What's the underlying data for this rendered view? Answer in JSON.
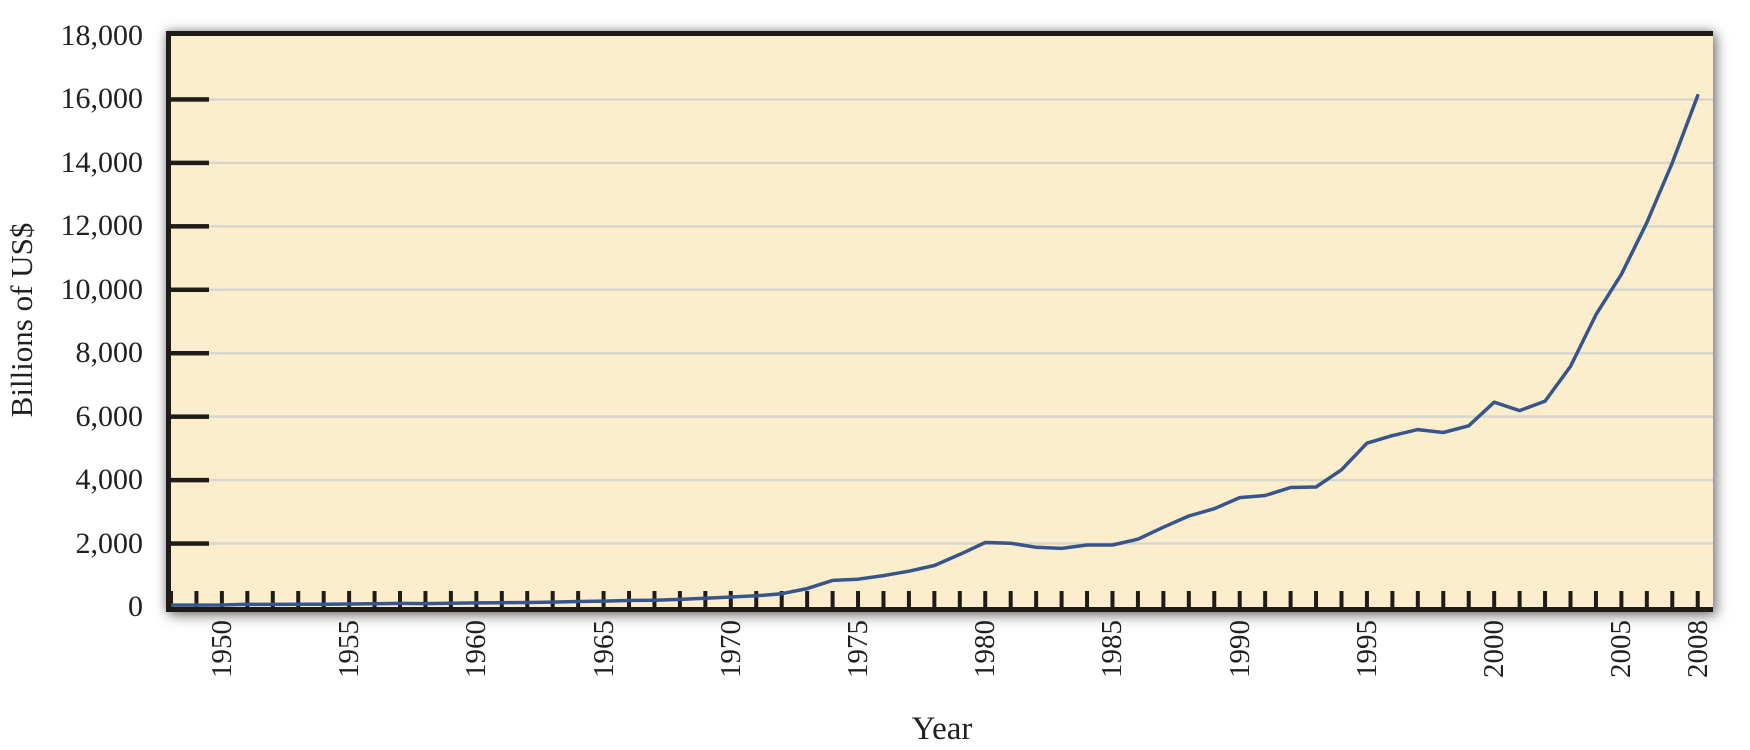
{
  "chart_data": {
    "type": "line",
    "title": "",
    "xlabel": "Year",
    "ylabel": "Billions of US$",
    "x_range": [
      1948,
      2008
    ],
    "ylim": [
      0,
      18000
    ],
    "y_tick_interval": 2000,
    "grid": "horizontal gridlines at every y tick",
    "legend": "none",
    "y_ticks": [
      {
        "value": 0,
        "label": "0"
      },
      {
        "value": 2000,
        "label": "2,000"
      },
      {
        "value": 4000,
        "label": "4,000"
      },
      {
        "value": 6000,
        "label": "6,000"
      },
      {
        "value": 8000,
        "label": "8,000"
      },
      {
        "value": 10000,
        "label": "10,000"
      },
      {
        "value": 12000,
        "label": "12,000"
      },
      {
        "value": 14000,
        "label": "14,000"
      },
      {
        "value": 16000,
        "label": "16,000"
      },
      {
        "value": 18000,
        "label": "18,000"
      }
    ],
    "x_ticks_labeled": [
      {
        "value": 1950,
        "label": "1950"
      },
      {
        "value": 1955,
        "label": "1955"
      },
      {
        "value": 1960,
        "label": "1960"
      },
      {
        "value": 1965,
        "label": "1965"
      },
      {
        "value": 1970,
        "label": "1970"
      },
      {
        "value": 1975,
        "label": "1975"
      },
      {
        "value": 1980,
        "label": "1980"
      },
      {
        "value": 1985,
        "label": "1985"
      },
      {
        "value": 1990,
        "label": "1990"
      },
      {
        "value": 1995,
        "label": "1995"
      },
      {
        "value": 2000,
        "label": "2000"
      },
      {
        "value": 2005,
        "label": "2005"
      },
      {
        "value": 2008,
        "label": "2008"
      }
    ],
    "x_minor_tick_every": 1,
    "series": [
      {
        "x": [
          1948,
          1949,
          1950,
          1951,
          1952,
          1953,
          1954,
          1955,
          1956,
          1957,
          1958,
          1959,
          1960,
          1961,
          1962,
          1963,
          1964,
          1965,
          1966,
          1967,
          1968,
          1969,
          1970,
          1971,
          1972,
          1973,
          1974,
          1975,
          1976,
          1977,
          1978,
          1979,
          1980,
          1981,
          1982,
          1983,
          1984,
          1985,
          1986,
          1987,
          1988,
          1989,
          1990,
          1991,
          1992,
          1993,
          1994,
          1995,
          1996,
          1997,
          1998,
          1999,
          2000,
          2001,
          2002,
          2003,
          2004,
          2005,
          2006,
          2007,
          2008
        ],
        "values": [
          59,
          60,
          62,
          84,
          81,
          84,
          87,
          95,
          104,
          113,
          108,
          116,
          130,
          136,
          143,
          155,
          173,
          187,
          204,
          215,
          240,
          274,
          316,
          354,
          419,
          579,
          840,
          877,
          991,
          1128,
          1307,
          1659,
          2034,
          2010,
          1883,
          1846,
          1956,
          1954,
          2138,
          2516,
          2869,
          3098,
          3449,
          3515,
          3766,
          3782,
          4326,
          5164,
          5403,
          5591,
          5501,
          5712,
          6456,
          6191,
          6492,
          7585,
          9218,
          10489,
          12113,
          14003,
          16120
        ]
      }
    ],
    "colors": {
      "line": "#36558C",
      "plot_background": "#FCEECD",
      "gridline": "#D6D6CE",
      "axis": "#1F1B18",
      "text": "#231F20",
      "page_background": "#FFFFFF"
    }
  }
}
